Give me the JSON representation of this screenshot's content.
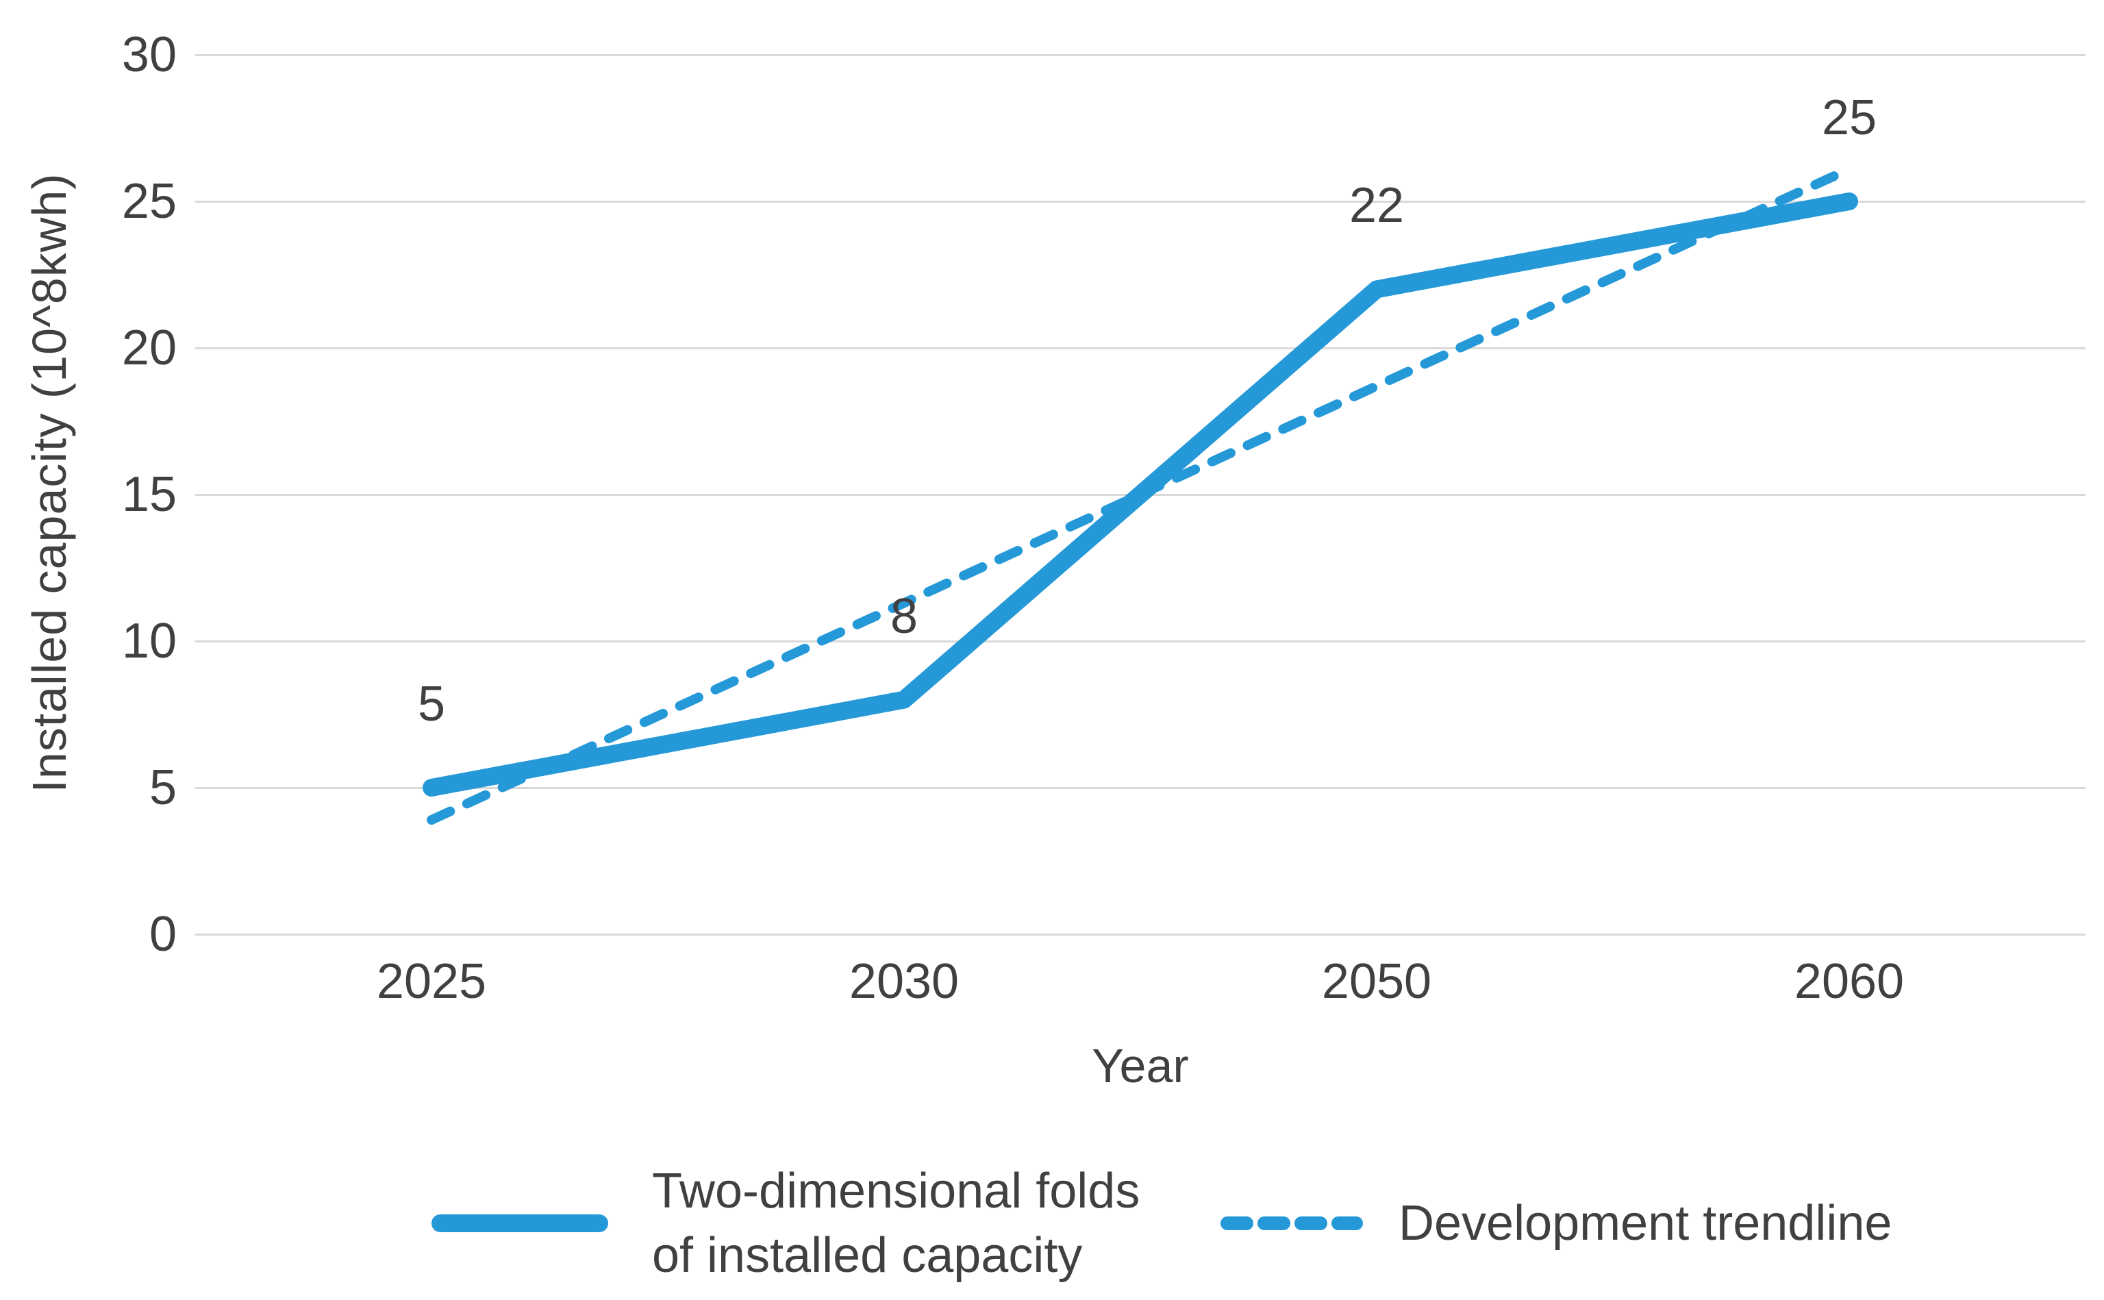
{
  "chart": {
    "accent_color": "#2599d8",
    "grid_color": "#d9d9d9",
    "text_color": "#404040",
    "y_axis": {
      "title": "Installed capacity (10^8kwh)",
      "tick_values": [
        30,
        25,
        20,
        15,
        10,
        5,
        0
      ]
    },
    "x_axis": {
      "title": "Year",
      "tick_labels": [
        "2025",
        "2030",
        "2050",
        "2060"
      ]
    }
  },
  "legend": {
    "items": [
      {
        "line1": "Two-dimensional folds",
        "line2": "of installed capacity"
      },
      {
        "label": "Development trendline"
      }
    ]
  },
  "chart_data": {
    "type": "line",
    "title": "",
    "xlabel": "Year",
    "ylabel": "Installed capacity (10^8kwh)",
    "categories": [
      "2025",
      "2030",
      "2050",
      "2060"
    ],
    "series": [
      {
        "name": "Two-dimensional folds of installed capacity",
        "style": "solid",
        "values": [
          5,
          8,
          22,
          25
        ],
        "point_labels": [
          "5",
          "8",
          "22",
          "25"
        ]
      },
      {
        "name": "Development trendline",
        "style": "dashed",
        "values": [
          3.9,
          11.3,
          18.7,
          26.1
        ],
        "point_labels": []
      }
    ],
    "ylim": [
      0,
      30
    ],
    "y_tick_step": 5,
    "grid": "horizontal",
    "legend_position": "bottom"
  }
}
